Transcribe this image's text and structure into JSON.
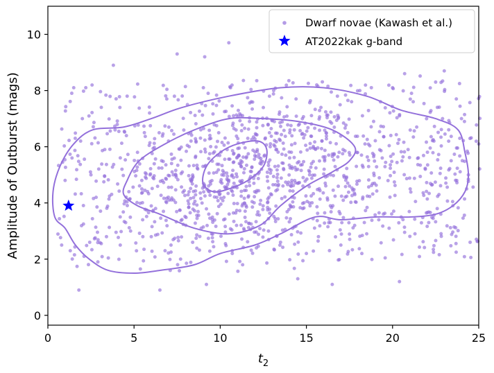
{
  "chart_data": {
    "type": "scatter",
    "xlabel": "t",
    "xlabel_sub": "2",
    "ylabel": "Amplitude of Outburst (mags)",
    "xlim": [
      0,
      25
    ],
    "ylim": [
      -0.35,
      11
    ],
    "xticks": [
      0,
      5,
      10,
      15,
      20,
      25
    ],
    "xtick_labels": [
      "0",
      "5",
      "10",
      "15",
      "20",
      "25"
    ],
    "yticks": [
      0,
      2,
      4,
      6,
      8,
      10
    ],
    "ytick_labels": [
      "0",
      "2",
      "4",
      "6",
      "8",
      "10"
    ],
    "grid": false,
    "legend_position": "top-right",
    "colors": {
      "dwarf": "#9370DB",
      "star": "#0000FF"
    },
    "series": [
      {
        "name": "Dwarf novae (Kawash et al.)",
        "marker": "circle",
        "sampling_note_points": [
          [
            7.5,
            9.3
          ],
          [
            9.1,
            9.2
          ],
          [
            10.5,
            9.7
          ],
          [
            3.8,
            8.9
          ],
          [
            2.2,
            8.1
          ],
          [
            1.5,
            8.1
          ],
          [
            23.0,
            8.7
          ],
          [
            20.7,
            8.6
          ],
          [
            25.0,
            6.1
          ],
          [
            24.0,
            7.0
          ],
          [
            22.5,
            8.3
          ],
          [
            20.0,
            8.1
          ],
          [
            24.5,
            2.6
          ],
          [
            1.8,
            0.9
          ],
          [
            6.5,
            0.9
          ],
          [
            9.2,
            1.1
          ],
          [
            14.5,
            1.3
          ],
          [
            16.5,
            1.1
          ],
          [
            20.4,
            1.2
          ],
          [
            0.8,
            2.5
          ],
          [
            1.3,
            2.3
          ],
          [
            2.1,
            2.1
          ],
          [
            2.9,
            1.9
          ],
          [
            3.4,
            2.8
          ],
          [
            4.2,
            2.5
          ],
          [
            4.8,
            3.0
          ],
          [
            5.5,
            3.4
          ],
          [
            6.0,
            2.8
          ],
          [
            6.8,
            2.3
          ],
          [
            7.1,
            1.6
          ],
          [
            7.7,
            2.0
          ],
          [
            8.4,
            2.6
          ],
          [
            8.9,
            3.1
          ],
          [
            9.5,
            2.9
          ],
          [
            10.2,
            3.4
          ],
          [
            10.7,
            2.2
          ],
          [
            11.3,
            1.8
          ],
          [
            12.1,
            2.4
          ],
          [
            12.8,
            3.0
          ],
          [
            13.5,
            2.6
          ],
          [
            14.2,
            3.1
          ],
          [
            15.0,
            2.2
          ],
          [
            15.7,
            2.8
          ],
          [
            16.3,
            3.3
          ],
          [
            17.0,
            2.5
          ],
          [
            17.8,
            3.2
          ],
          [
            18.5,
            2.9
          ],
          [
            19.2,
            3.4
          ],
          [
            19.8,
            3.1
          ],
          [
            20.5,
            3.5
          ],
          [
            21.3,
            2.9
          ],
          [
            22.1,
            3.3
          ],
          [
            22.8,
            3.6
          ],
          [
            23.5,
            3.9
          ],
          [
            24.3,
            4.5
          ],
          [
            1.0,
            4.8
          ],
          [
            1.4,
            5.6
          ],
          [
            1.9,
            6.2
          ],
          [
            2.5,
            5.0
          ],
          [
            2.8,
            4.2
          ],
          [
            3.3,
            5.9
          ],
          [
            3.9,
            6.6
          ],
          [
            4.3,
            5.2
          ],
          [
            4.7,
            4.4
          ],
          [
            5.2,
            5.8
          ],
          [
            5.6,
            6.5
          ],
          [
            6.1,
            4.9
          ],
          [
            6.6,
            5.5
          ],
          [
            7.0,
            6.2
          ],
          [
            7.3,
            4.1
          ],
          [
            7.8,
            5.1
          ],
          [
            8.2,
            6.0
          ],
          [
            8.6,
            4.6
          ],
          [
            9.0,
            5.3
          ],
          [
            9.4,
            6.4
          ],
          [
            9.8,
            4.2
          ],
          [
            10.1,
            5.0
          ],
          [
            10.4,
            5.9
          ],
          [
            10.8,
            4.7
          ],
          [
            11.2,
            5.5
          ],
          [
            11.6,
            6.3
          ],
          [
            12.0,
            4.4
          ],
          [
            12.4,
            5.2
          ],
          [
            12.9,
            6.0
          ],
          [
            13.3,
            4.9
          ],
          [
            13.8,
            5.7
          ],
          [
            14.3,
            6.6
          ],
          [
            14.8,
            4.6
          ],
          [
            15.3,
            5.4
          ],
          [
            15.9,
            6.2
          ],
          [
            16.4,
            5.0
          ],
          [
            16.9,
            5.8
          ],
          [
            17.4,
            6.5
          ],
          [
            17.9,
            5.3
          ],
          [
            18.4,
            6.1
          ],
          [
            18.9,
            6.9
          ],
          [
            19.4,
            5.6
          ],
          [
            19.9,
            6.4
          ],
          [
            20.4,
            7.1
          ],
          [
            20.9,
            5.9
          ],
          [
            21.4,
            6.7
          ],
          [
            21.9,
            5.2
          ],
          [
            22.4,
            6.2
          ],
          [
            22.9,
            7.0
          ],
          [
            23.4,
            5.5
          ],
          [
            23.9,
            6.3
          ],
          [
            24.4,
            5.0
          ],
          [
            2.0,
            7.0
          ],
          [
            3.1,
            7.4
          ],
          [
            4.6,
            7.8
          ],
          [
            5.9,
            7.2
          ],
          [
            6.9,
            7.7
          ],
          [
            8.1,
            7.5
          ],
          [
            9.3,
            7.9
          ],
          [
            10.6,
            8.1
          ],
          [
            11.8,
            7.6
          ],
          [
            13.1,
            8.0
          ],
          [
            14.4,
            7.7
          ],
          [
            15.6,
            8.2
          ],
          [
            16.8,
            7.8
          ],
          [
            18.1,
            8.0
          ],
          [
            19.3,
            7.6
          ],
          [
            21.1,
            7.9
          ],
          [
            22.6,
            7.4
          ],
          [
            23.7,
            7.7
          ]
        ],
        "points": []
      },
      {
        "name": "AT2022kak g-band",
        "marker": "star",
        "points": [
          [
            1.2,
            3.9
          ]
        ]
      }
    ]
  }
}
